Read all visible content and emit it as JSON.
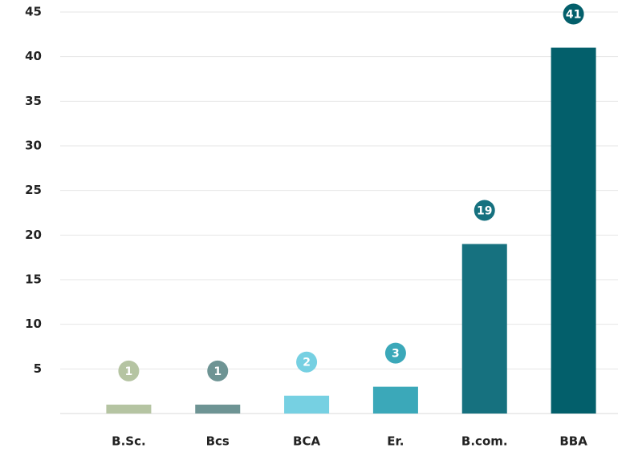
{
  "chart_data": {
    "type": "bar",
    "categories": [
      "B.Sc.",
      "Bcs",
      "BCA",
      "Er.",
      "B.com.",
      "BBA"
    ],
    "values": [
      1,
      1,
      2,
      3,
      19,
      41
    ],
    "colors": [
      "#b5c4a2",
      "#6e9494",
      "#76d0e2",
      "#3ba8b9",
      "#16717f",
      "#035f6b"
    ],
    "ylim": [
      0,
      45
    ],
    "yticks": [
      5,
      10,
      15,
      20,
      25,
      30,
      35,
      40,
      45
    ],
    "grid": true
  }
}
